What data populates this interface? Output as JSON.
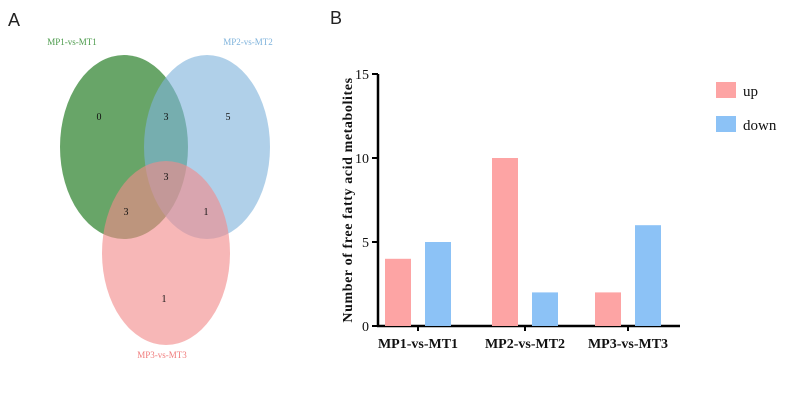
{
  "panels": {
    "a": "A",
    "b": "B"
  },
  "colors": {
    "set1": "#3d8c3d",
    "set2": "#7fb3dc",
    "set3": "#f28b8b",
    "up": "#fda4a4",
    "down": "#8cc2f6"
  },
  "chart_data": [
    {
      "type": "venn",
      "sets": [
        "MP1-vs-MT1",
        "MP2-vs-MT2",
        "MP3-vs-MT3"
      ],
      "regions": {
        "only_1": "0",
        "only_2": "5",
        "only_3": "1",
        "1_2": "3",
        "1_3": "3",
        "2_3": "1",
        "1_2_3": "3"
      }
    },
    {
      "type": "bar",
      "title": "",
      "xlabel": "",
      "ylabel": "Number of free fatty acid metabolites",
      "categories": [
        "MP1-vs-MT1",
        "MP2-vs-MT2",
        "MP3-vs-MT3"
      ],
      "series": [
        {
          "name": "up",
          "values": [
            4,
            10,
            2
          ]
        },
        {
          "name": "down",
          "values": [
            5,
            2,
            6
          ]
        }
      ],
      "ylim": [
        0,
        15
      ],
      "yticks": [
        "0",
        "5",
        "10",
        "15"
      ],
      "legend_position": "top-right",
      "grid": false
    }
  ]
}
